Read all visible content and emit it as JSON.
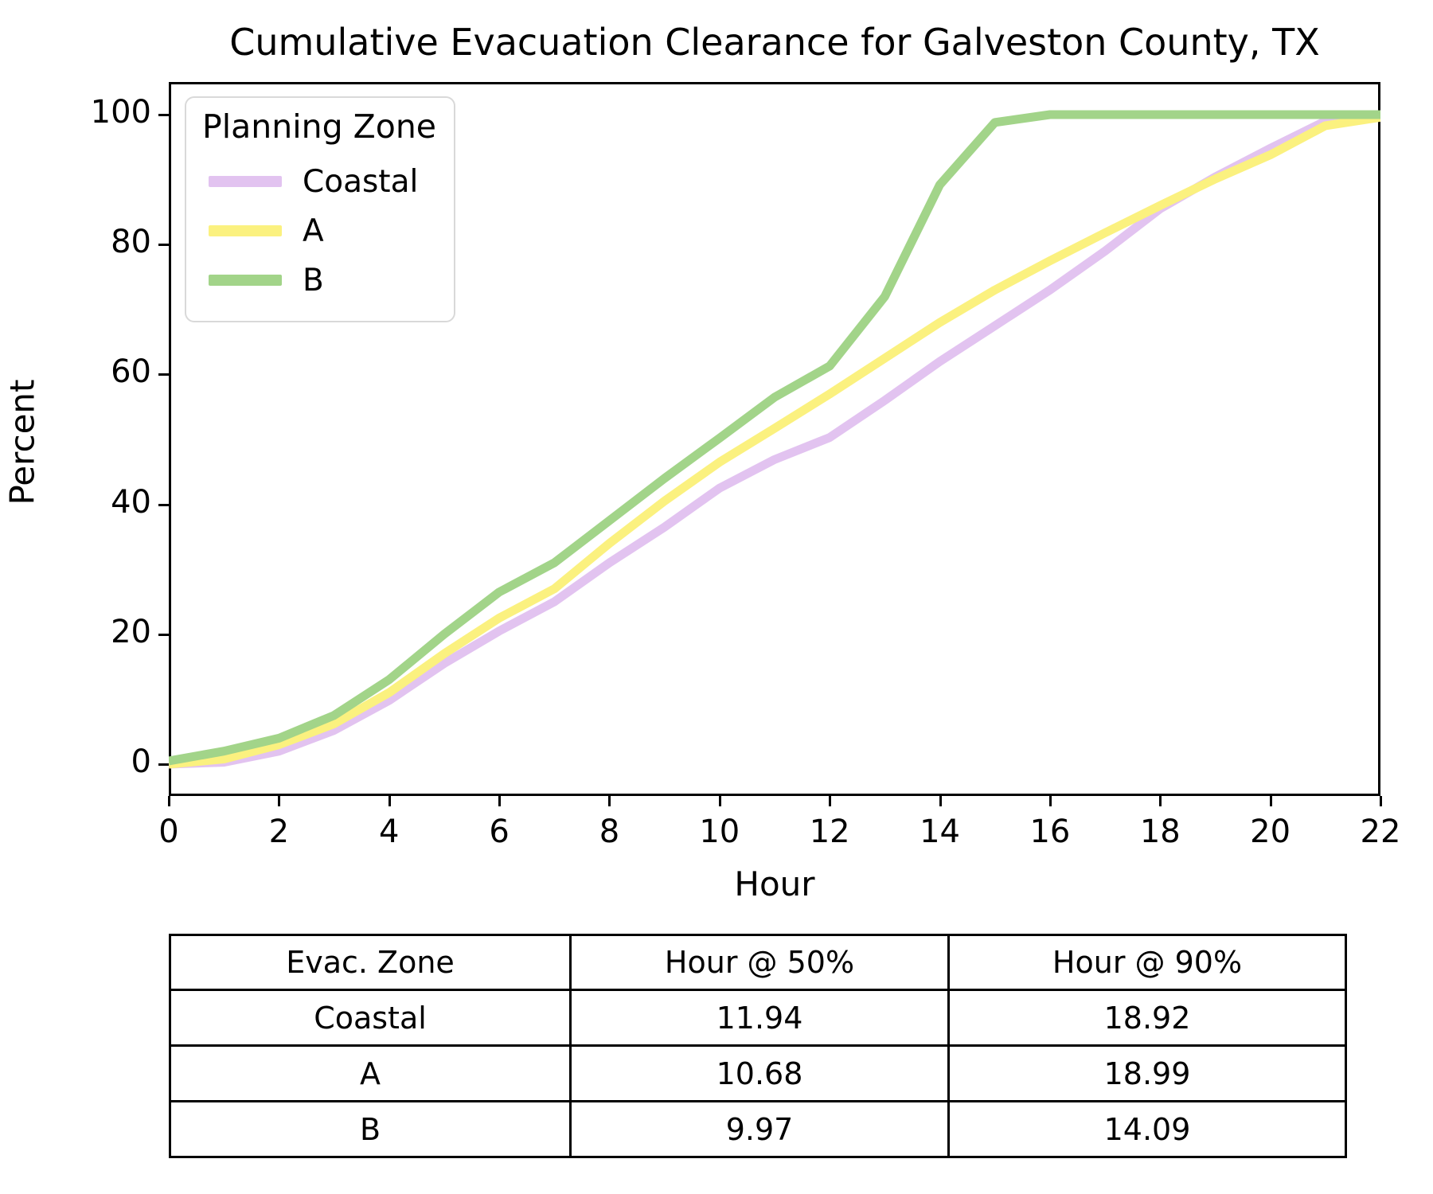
{
  "title": "Cumulative Evacuation Clearance for Galveston County, TX",
  "chart_data": {
    "type": "line",
    "title": "Cumulative Evacuation Clearance for Galveston County, TX",
    "xlabel": "Hour",
    "ylabel": "Percent",
    "xlim": [
      0,
      22
    ],
    "ylim": [
      0,
      100
    ],
    "x_ticks": [
      0,
      2,
      4,
      6,
      8,
      10,
      12,
      14,
      16,
      18,
      20,
      22
    ],
    "y_ticks": [
      0,
      20,
      40,
      60,
      80,
      100
    ],
    "grid": false,
    "legend_title": "Planning Zone",
    "legend_position": "upper left",
    "x": [
      0,
      1,
      2,
      3,
      4,
      5,
      6,
      7,
      8,
      9,
      10,
      11,
      12,
      13,
      14,
      15,
      16,
      17,
      18,
      19,
      20,
      21,
      22
    ],
    "series": [
      {
        "name": "Coastal",
        "color": "#e2c3f0",
        "values": [
          0,
          0.3,
          2,
          5.2,
          9.8,
          15.5,
          20.5,
          25,
          31,
          36.5,
          42.5,
          46.9,
          50.3,
          56,
          62,
          67.5,
          73,
          79,
          85.5,
          90.4,
          94.8,
          99,
          99.8
        ]
      },
      {
        "name": "A",
        "color": "#fbf17f",
        "values": [
          0,
          0.8,
          3,
          6.2,
          11,
          17,
          22.5,
          27,
          34,
          40.5,
          46.5,
          51.7,
          57,
          62.5,
          68,
          73,
          77.5,
          81.8,
          86,
          90.1,
          93.8,
          98.3,
          99.6
        ]
      },
      {
        "name": "B",
        "color": "#a2d489",
        "values": [
          0.5,
          2,
          4,
          7.5,
          13,
          20,
          26.5,
          31,
          37.5,
          44,
          50.2,
          56.5,
          61.3,
          72,
          89.2,
          98.8,
          100,
          100,
          100,
          100,
          100,
          100,
          100
        ]
      }
    ],
    "line_width": 11
  },
  "table": {
    "headers": [
      "Evac. Zone",
      "Hour @ 50%",
      "Hour @ 90%"
    ],
    "rows": [
      [
        "Coastal",
        "11.94",
        "18.92"
      ],
      [
        "A",
        "10.68",
        "18.99"
      ],
      [
        "B",
        "9.97",
        "14.09"
      ]
    ]
  }
}
